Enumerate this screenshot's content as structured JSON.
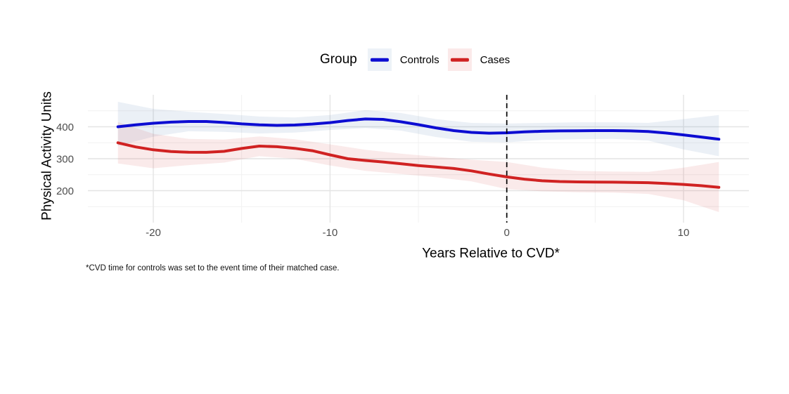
{
  "figure": {
    "background": "#FFFFFF"
  },
  "legend": {
    "title": "Group",
    "items": [
      {
        "label": "Controls",
        "color": "#0D0DD2",
        "fill": "#EDF2F7"
      },
      {
        "label": "Cases",
        "color": "#D02222",
        "fill": "#FBE9E9"
      }
    ]
  },
  "axes": {
    "y_title": "Physical Activity Units",
    "x_title": "Years Relative to CVD*",
    "y_tick_labels": [
      "400",
      "300",
      "200"
    ],
    "x_tick_labels": [
      "-20",
      "-10",
      "0",
      "10"
    ]
  },
  "footnote": "*CVD time for controls was set to the event time of their matched case.",
  "chart_data": {
    "type": "line",
    "title": "",
    "xlabel": "Years Relative to CVD*",
    "ylabel": "Physical Activity Units",
    "xlim": [
      -23.7,
      13.7
    ],
    "ylim": [
      100,
      500
    ],
    "x_major_ticks": [
      -20,
      -10,
      0,
      10
    ],
    "x_minor_gridlines": [
      -15,
      -5,
      5
    ],
    "y_major_ticks": [
      400,
      300,
      200
    ],
    "y_minor_gridlines": [
      150,
      250,
      350,
      450
    ],
    "grid": true,
    "legend_position": "top-center",
    "reference_line": {
      "x": 0,
      "style": "dashed",
      "color": "#000000"
    },
    "x": [
      -22,
      -21,
      -20,
      -19,
      -18,
      -17,
      -16,
      -15,
      -14,
      -13,
      -12,
      -11,
      -10,
      -9,
      -8,
      -7,
      -6,
      -5,
      -4,
      -3,
      -2,
      -1,
      0,
      1,
      2,
      3,
      4,
      5,
      6,
      7,
      8,
      9,
      10,
      11,
      12
    ],
    "series": [
      {
        "name": "Controls",
        "color": "#0D0DD2",
        "values": [
          400,
          406,
          411,
          414.5,
          416.5,
          416.5,
          413.5,
          409,
          406,
          404.5,
          405.5,
          408.5,
          413,
          419.5,
          424.5,
          423,
          415.5,
          406.5,
          396.5,
          388,
          382.5,
          380,
          381,
          384,
          386,
          387,
          387.5,
          388,
          388,
          387,
          385,
          380.5,
          374.5,
          368,
          361
        ],
        "ribbon": {
          "fill": "rgba(100,140,185,0.13)",
          "x": [
            -22,
            -20,
            -18,
            -16,
            -14,
            -12,
            -10,
            -8,
            -6,
            -4,
            -2,
            0,
            2,
            4,
            6,
            8,
            10,
            12
          ],
          "upper": [
            478,
            456,
            447,
            440,
            432,
            429,
            437,
            452,
            443,
            424,
            412,
            410,
            412,
            414,
            414,
            412,
            424,
            437
          ],
          "lower": [
            340,
            369,
            386,
            384,
            379,
            382,
            390,
            396,
            388,
            368,
            353,
            351,
            359,
            361,
            362,
            357,
            329,
            308
          ]
        }
      },
      {
        "name": "Cases",
        "color": "#D02222",
        "values": [
          350,
          337,
          328,
          322.5,
          320.5,
          320,
          323,
          332,
          339.5,
          337.5,
          332.5,
          325,
          312,
          300,
          294.5,
          290,
          284.5,
          278.5,
          274,
          269.5,
          262,
          252,
          243,
          236,
          231,
          228.5,
          227.5,
          227,
          226.5,
          226,
          225,
          222.5,
          219.5,
          215.5,
          210.5
        ],
        "ribbon": {
          "fill": "rgba(214,60,60,0.11)",
          "x": [
            -22,
            -20,
            -18,
            -16,
            -14,
            -12,
            -10,
            -8,
            -6,
            -4,
            -2,
            0,
            2,
            4,
            6,
            8,
            10,
            12
          ],
          "upper": [
            415,
            378,
            362,
            360,
            370,
            361,
            345,
            328,
            316,
            306,
            297,
            290,
            272,
            262,
            260,
            259,
            272,
            290
          ],
          "lower": [
            285,
            270,
            280,
            288,
            308,
            300,
            279,
            262,
            252,
            242,
            229,
            205,
            198,
            195,
            194,
            190,
            170,
            133
          ]
        }
      }
    ],
    "colors": {
      "major_gridline": "#E4E4E4",
      "minor_gridline": "#F1F1F1",
      "tick_label": "#4D4D4D"
    }
  }
}
